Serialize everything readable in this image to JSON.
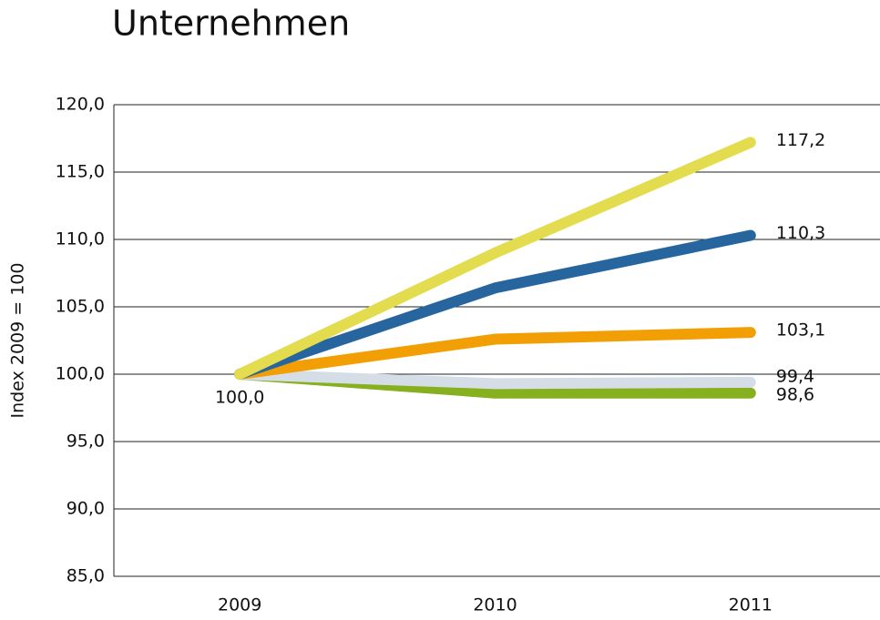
{
  "chart_data": {
    "type": "line",
    "title": "Unternehmen",
    "y_label": "Index 2009 = 100",
    "categories": [
      "2009",
      "2010",
      "2011"
    ],
    "series": [
      {
        "color": "#86b01e",
        "values": [
          100,
          98.6,
          98.6
        ],
        "value_labels": [
          "100,0",
          null,
          "98,6"
        ]
      },
      {
        "color": "#d5dee6",
        "values": [
          100,
          99.3,
          99.4
        ],
        "value_labels": [
          null,
          null,
          "99,4"
        ]
      },
      {
        "color": "#f29f05",
        "values": [
          100,
          102.6,
          103.1
        ],
        "value_labels": [
          null,
          null,
          "103,1"
        ]
      },
      {
        "color": "#26659e",
        "values": [
          100,
          106.4,
          110.3
        ],
        "value_labels": [
          null,
          null,
          "110,3"
        ]
      },
      {
        "color": "#e3dc4e",
        "values": [
          100,
          109.0,
          117.2
        ],
        "value_labels": [
          null,
          null,
          "117,2"
        ]
      }
    ],
    "ylim": [
      85,
      120
    ],
    "yticks": [
      {
        "value": 85,
        "label": "85,0"
      },
      {
        "value": 90,
        "label": "90,0"
      },
      {
        "value": 95,
        "label": "95,0"
      },
      {
        "value": 100,
        "label": "100,0"
      },
      {
        "value": 105,
        "label": "105,0"
      },
      {
        "value": 110,
        "label": "110,0"
      },
      {
        "value": 115,
        "label": "115,0"
      },
      {
        "value": 120,
        "label": "120,0"
      }
    ],
    "grid": true
  }
}
